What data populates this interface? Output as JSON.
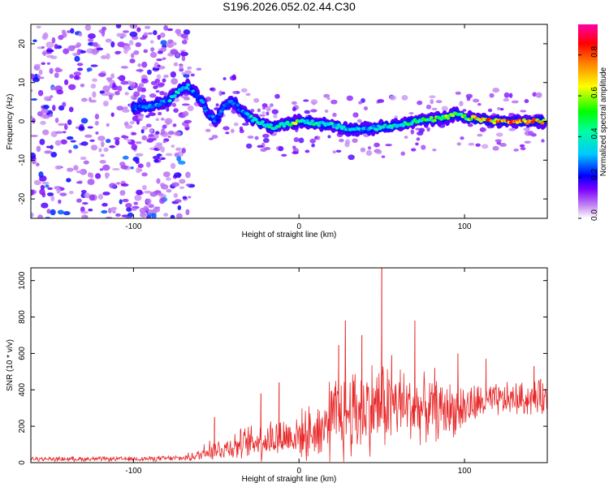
{
  "title": "S196.2026.052.02.44.C30",
  "chart_data": [
    {
      "type": "heatmap",
      "title": "S196.2026.052.02.44.C30",
      "xlabel": "Height of straight line (km)",
      "ylabel": "Frequency (Hz)",
      "xlim": [
        -162,
        150
      ],
      "ylim": [
        -25,
        25
      ],
      "xticks": [
        -100,
        0,
        100
      ],
      "xtick_labels": [
        "-100",
        "0",
        "100"
      ],
      "yticks": [
        -20,
        -10,
        0,
        10,
        20
      ],
      "ytick_labels": [
        "-20",
        "-10",
        "0",
        "10",
        "20"
      ],
      "colorbar": {
        "label": "Normalized spectral amplitude",
        "range": [
          0,
          0.95
        ],
        "ticks": [
          0.0,
          0.2,
          0.4,
          0.6,
          0.8
        ],
        "tick_labels": [
          "0.0",
          "0.2",
          "0.4",
          "0.6",
          "0.8"
        ]
      },
      "ridge": {
        "x": [
          -100,
          -90,
          -80,
          -75,
          -70,
          -67,
          -62,
          -58,
          -55,
          -50,
          -45,
          -40,
          -35,
          -30,
          -25,
          -20,
          -15,
          -10,
          -5,
          0,
          5,
          10,
          20,
          30,
          40,
          50,
          60,
          70,
          80,
          90,
          95,
          100,
          110,
          120,
          130,
          140,
          148
        ],
        "freq": [
          3.5,
          4,
          5,
          7,
          8.5,
          9,
          7,
          5,
          2,
          0,
          4,
          5,
          3,
          1,
          0,
          -1,
          -1.5,
          -1,
          -0.5,
          0,
          0,
          -0.5,
          -1,
          -2,
          -2,
          -1.5,
          -1,
          0,
          0.5,
          1,
          2,
          1,
          0.5,
          0,
          0,
          0,
          0
        ],
        "amplitude": [
          0.3,
          0.3,
          0.35,
          0.45,
          0.45,
          0.35,
          0.3,
          0.3,
          0.3,
          0.3,
          0.35,
          0.35,
          0.35,
          0.45,
          0.5,
          0.5,
          0.55,
          0.5,
          0.6,
          0.7,
          0.5,
          0.5,
          0.45,
          0.4,
          0.4,
          0.45,
          0.5,
          0.55,
          0.6,
          0.65,
          0.6,
          0.65,
          0.85,
          0.9,
          0.9,
          0.85,
          0.8
        ]
      },
      "noise_region_x": [
        -162,
        -65
      ],
      "noise_amplitude_range": [
        0.05,
        0.3
      ]
    },
    {
      "type": "line",
      "xlabel": "Height of straight line (km)",
      "ylabel": "SNR (10 * v/v)",
      "xlim": [
        -162,
        150
      ],
      "ylim": [
        0,
        1070
      ],
      "xticks": [
        -100,
        0,
        100
      ],
      "xtick_labels": [
        "-100",
        "0",
        "100"
      ],
      "yticks": [
        0,
        200,
        400,
        600,
        800,
        1000
      ],
      "ytick_labels": [
        "0",
        "200",
        "400",
        "600",
        "800",
        "1000"
      ],
      "series": [
        {
          "name": "SNR",
          "color": "#e8292a",
          "envelope_x": [
            -162,
            -100,
            -70,
            -60,
            -55,
            -50,
            -40,
            -30,
            -20,
            -10,
            0,
            10,
            20,
            25,
            30,
            40,
            50,
            60,
            70,
            80,
            90,
            100,
            110,
            120,
            130,
            140,
            150
          ],
          "baseline": [
            20,
            20,
            25,
            40,
            80,
            70,
            90,
            110,
            130,
            140,
            150,
            170,
            230,
            260,
            280,
            300,
            320,
            320,
            300,
            290,
            290,
            300,
            330,
            340,
            350,
            350,
            360
          ],
          "spread": [
            15,
            15,
            20,
            40,
            90,
            70,
            90,
            110,
            140,
            140,
            150,
            180,
            260,
            320,
            330,
            300,
            300,
            260,
            220,
            200,
            180,
            160,
            120,
            110,
            110,
            110,
            110
          ],
          "peaks": [
            {
              "x": -51,
              "y": 250
            },
            {
              "x": -23,
              "y": 380
            },
            {
              "x": -12,
              "y": 440
            },
            {
              "x": 24,
              "y": 645
            },
            {
              "x": 28,
              "y": 780
            },
            {
              "x": 38,
              "y": 700
            },
            {
              "x": 50,
              "y": 1070
            },
            {
              "x": 56,
              "y": 590
            },
            {
              "x": 70,
              "y": 780
            },
            {
              "x": 82,
              "y": 520
            },
            {
              "x": 96,
              "y": 600
            },
            {
              "x": 113,
              "y": 570
            },
            {
              "x": 142,
              "y": 530
            },
            {
              "x": 146,
              "y": 460
            }
          ]
        }
      ]
    }
  ]
}
